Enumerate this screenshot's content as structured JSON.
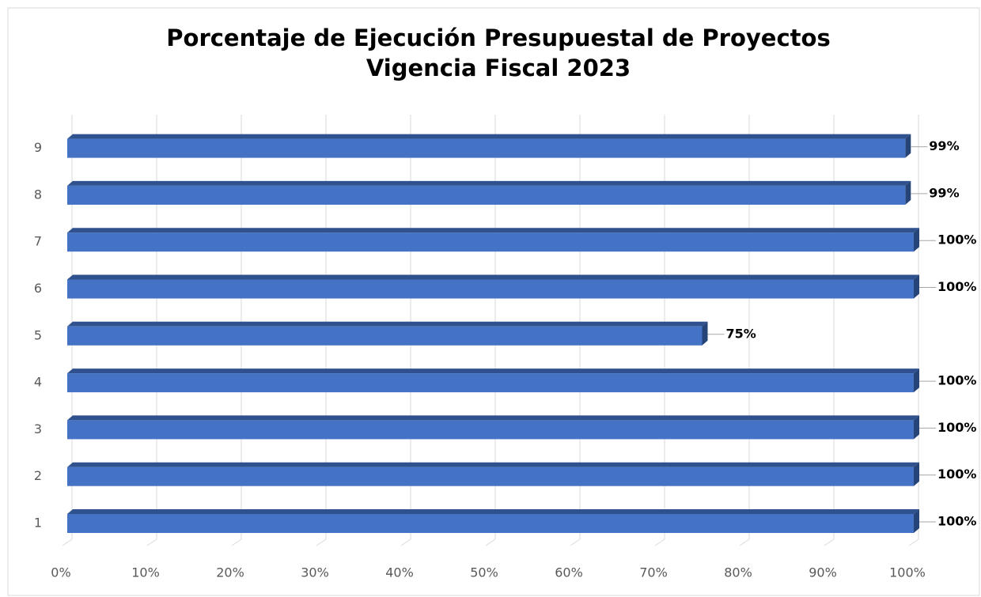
{
  "chart_data": {
    "type": "bar",
    "orientation": "horizontal",
    "title": "Porcentaje de Ejecución Presupuestal de Proyectos",
    "subtitle": "Vigencia Fiscal 2023",
    "categories": [
      "1",
      "2",
      "3",
      "4",
      "5",
      "6",
      "7",
      "8",
      "9"
    ],
    "values": [
      100,
      100,
      100,
      100,
      75,
      100,
      100,
      99,
      99
    ],
    "value_labels": [
      "100%",
      "100%",
      "100%",
      "100%",
      "75%",
      "100%",
      "100%",
      "99%",
      "99%"
    ],
    "color": "#4472c4",
    "xlim": [
      0,
      100
    ],
    "xticks": [
      {
        "value": 0,
        "label": "0%"
      },
      {
        "value": 10,
        "label": "10%"
      },
      {
        "value": 20,
        "label": "20%"
      },
      {
        "value": 30,
        "label": "30%"
      },
      {
        "value": 40,
        "label": "40%"
      },
      {
        "value": 50,
        "label": "50%"
      },
      {
        "value": 60,
        "label": "60%"
      },
      {
        "value": 70,
        "label": "70%"
      },
      {
        "value": 80,
        "label": "80%"
      },
      {
        "value": 90,
        "label": "90%"
      },
      {
        "value": 100,
        "label": "100%"
      }
    ],
    "grid": true
  }
}
